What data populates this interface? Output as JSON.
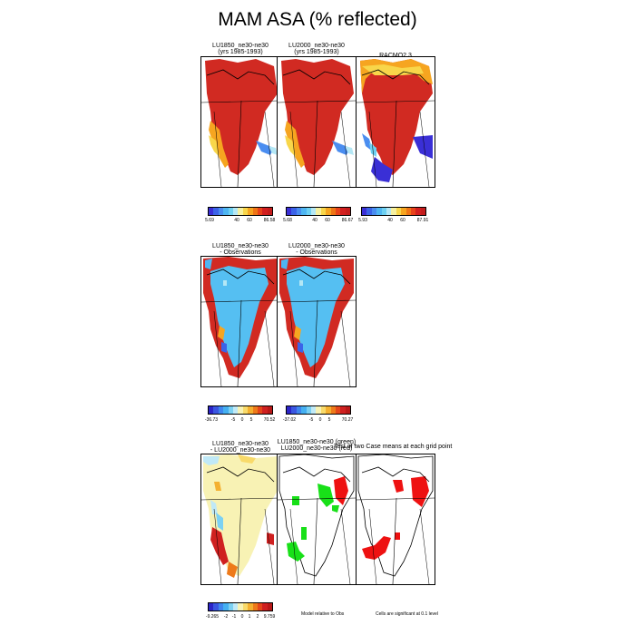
{
  "title": "MAM ASA (% reflected)",
  "row1": {
    "panels": [
      {
        "line1": "LU1850_ne30-ne30",
        "line2": "(yrs 1985-1993)"
      },
      {
        "line1": "LU2000_ne30-ne30",
        "line2": "(yrs 1985-1993)"
      },
      {
        "line1": "RACMO2.3",
        "line2": ""
      }
    ],
    "colorbars": [
      {
        "min": "5.69",
        "t1": "40",
        "t2": "60",
        "max": "86.58"
      },
      {
        "min": "5.68",
        "t1": "40",
        "t2": "60",
        "max": "86.67"
      },
      {
        "min": "5.93",
        "t1": "40",
        "t2": "60",
        "max": "87.91"
      }
    ]
  },
  "row2": {
    "panels": [
      {
        "line1": "LU1850_ne30-ne30",
        "line2": "- Observations"
      },
      {
        "line1": "LU2000_ne30-ne30",
        "line2": "- Observations"
      }
    ],
    "colorbars": [
      {
        "min": "-36.73",
        "t1": "-5",
        "t2": "0",
        "t3": "5",
        "max": "70.52"
      },
      {
        "min": "-37.02",
        "t1": "-5",
        "t2": "0",
        "t3": "5",
        "max": "70.27"
      }
    ]
  },
  "row3": {
    "panels": [
      {
        "line1": "LU1850_ne30-ne30",
        "line2": "- LU2000_ne30-ne30"
      },
      {
        "line1": "LU1850_ne30-ne30 (green)",
        "line2": "LU2000_ne30-ne30 (red)"
      },
      {
        "line1": "Test of two Case means at each grid point",
        "line2": ""
      }
    ],
    "colorbar": {
      "min": "-9.265",
      "t1": "-2",
      "t2": "-1",
      "t3": "0",
      "t4": "1",
      "t5": "2",
      "max": "9.759"
    },
    "note_model": "Model relative to Obs",
    "note_sig": "Cells are significant at 0.1 level"
  },
  "colors": {
    "abs_scale": [
      "#3a2fd6",
      "#3b63e8",
      "#4a8df0",
      "#4fb6f2",
      "#6ed1f2",
      "#b4e7f5",
      "#f6f0a0",
      "#f8d64a",
      "#f6a520",
      "#ef7516",
      "#e8421a",
      "#d21f1f",
      "#c41c1c"
    ],
    "diff_scale": [
      "#2c25c8",
      "#3a56e0",
      "#3f86ee",
      "#45b0f1",
      "#7cd1f3",
      "#c0e9f7",
      "#f8f2b4",
      "#f8da6a",
      "#f4b030",
      "#ee7a1a",
      "#e4461a",
      "#cf2020",
      "#b81818"
    ],
    "land_red": "#d12a22",
    "obs_blue": "#55bff2",
    "sig_green": "#18e018",
    "sig_red": "#ee1111"
  }
}
